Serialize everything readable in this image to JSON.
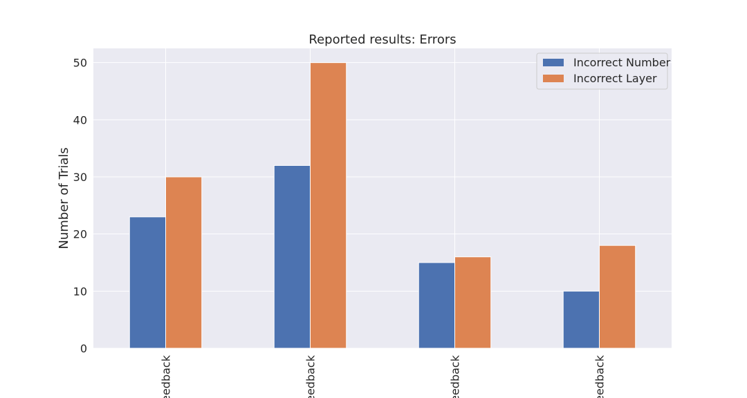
{
  "chart_data": {
    "type": "bar",
    "title": "Reported results: Errors",
    "xlabel": "",
    "ylabel": "Number of Trials",
    "categories": [
      "Feedback",
      "Feedback",
      "Feedback",
      "Feedback"
    ],
    "category_labels_visible": [
      "eedback",
      "eedback",
      "eedback",
      "eedback"
    ],
    "series": [
      {
        "name": "Incorrect Number",
        "values": [
          23,
          32,
          15,
          10
        ],
        "color": "#4c72b0"
      },
      {
        "name": "Incorrect Layer",
        "values": [
          30,
          50,
          16,
          18
        ],
        "color": "#dd8452"
      }
    ],
    "ylim": [
      0,
      52.5
    ],
    "yticks": [
      0,
      10,
      20,
      30,
      40,
      50
    ],
    "grid": true,
    "legend_position": "top-right",
    "background": "#eaeaf2"
  }
}
